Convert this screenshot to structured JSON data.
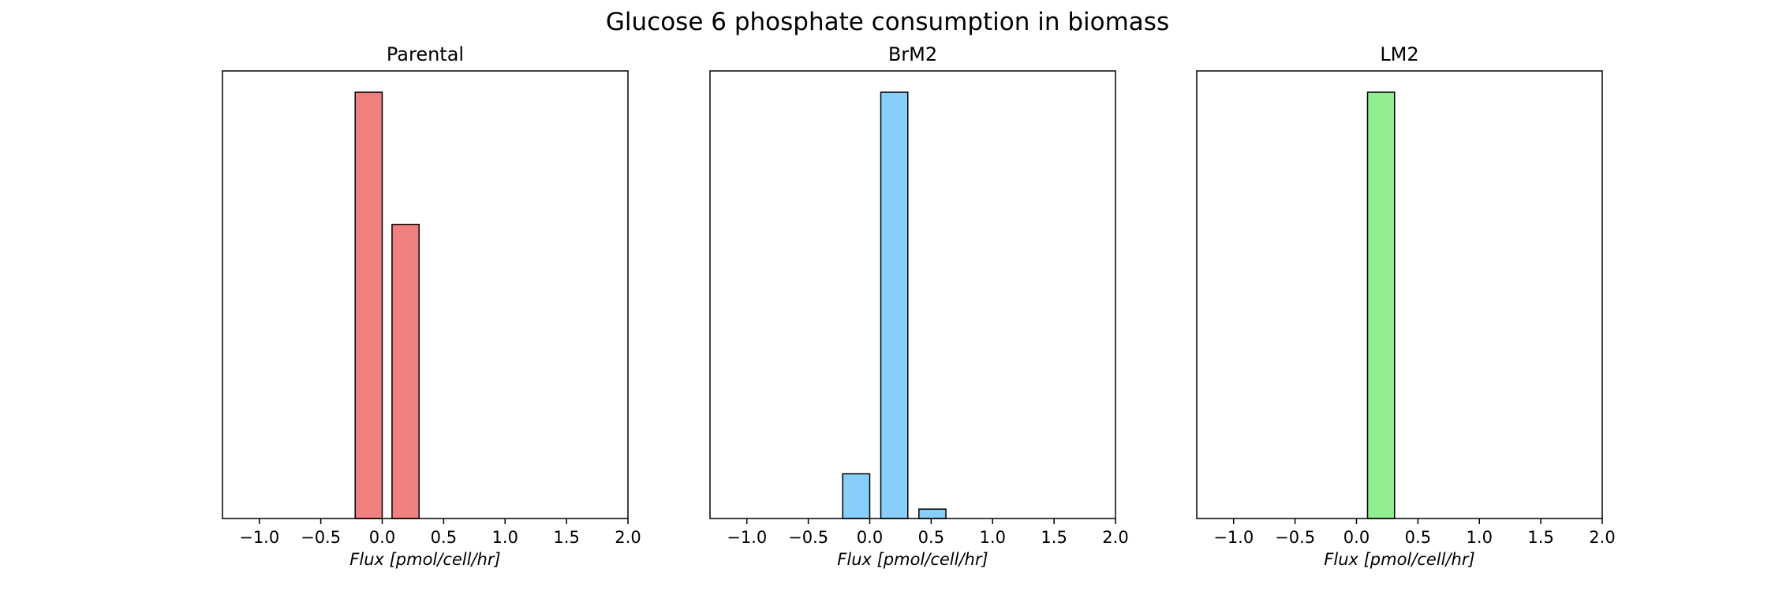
{
  "figure": {
    "title": "Glucose 6 phosphate consumption in biomass"
  },
  "chart_data": [
    {
      "type": "bar",
      "title": "Parental",
      "xlabel": "Flux [pmol/cell/hr]",
      "ylabel": "",
      "xlim": [
        -1.3,
        2.0
      ],
      "ylim": [
        0,
        1.05
      ],
      "x_ticks": [
        "−1.0",
        "−0.5",
        "0.0",
        "0.5",
        "1.0",
        "1.5",
        "2.0"
      ],
      "x_tick_values": [
        -1.0,
        -0.5,
        0.0,
        0.5,
        1.0,
        1.5,
        2.0
      ],
      "y_ticks_visible": false,
      "bar_color": "#f08080",
      "edge_color": "#000000",
      "bars": [
        {
          "x0": -0.22,
          "x1": 0.0,
          "value": 1.0
        },
        {
          "x0": 0.08,
          "x1": 0.3,
          "value": 0.69
        }
      ]
    },
    {
      "type": "bar",
      "title": "BrM2",
      "xlabel": "Flux [pmol/cell/hr]",
      "ylabel": "",
      "xlim": [
        -1.3,
        2.0
      ],
      "ylim": [
        0,
        1.05
      ],
      "x_ticks": [
        "−1.0",
        "−0.5",
        "0.0",
        "0.5",
        "1.0",
        "1.5",
        "2.0"
      ],
      "x_tick_values": [
        -1.0,
        -0.5,
        0.0,
        0.5,
        1.0,
        1.5,
        2.0
      ],
      "y_ticks_visible": false,
      "bar_color": "#87cefa",
      "edge_color": "#000000",
      "bars": [
        {
          "x0": -0.22,
          "x1": 0.0,
          "value": 0.105
        },
        {
          "x0": 0.09,
          "x1": 0.31,
          "value": 1.0
        },
        {
          "x0": 0.4,
          "x1": 0.62,
          "value": 0.022
        }
      ]
    },
    {
      "type": "bar",
      "title": "LM2",
      "xlabel": "Flux [pmol/cell/hr]",
      "ylabel": "",
      "xlim": [
        -1.3,
        2.0
      ],
      "ylim": [
        0,
        1.05
      ],
      "x_ticks": [
        "−1.0",
        "−0.5",
        "0.0",
        "0.5",
        "1.0",
        "1.5",
        "2.0"
      ],
      "x_tick_values": [
        -1.0,
        -0.5,
        0.0,
        0.5,
        1.0,
        1.5,
        2.0
      ],
      "y_ticks_visible": false,
      "bar_color": "#90ee90",
      "edge_color": "#000000",
      "bars": [
        {
          "x0": 0.09,
          "x1": 0.31,
          "value": 1.0
        }
      ]
    }
  ]
}
